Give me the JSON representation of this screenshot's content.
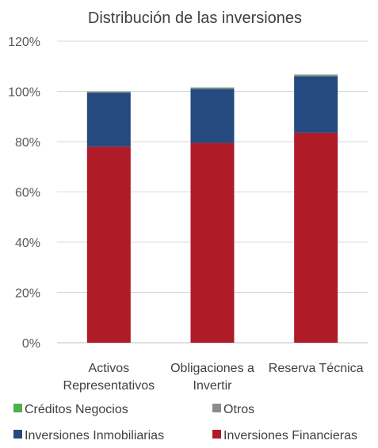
{
  "chart_data": {
    "type": "bar",
    "stacked": true,
    "title": "Distribución de las inversiones",
    "categories": [
      [
        "Activos",
        "Representativos"
      ],
      [
        "Obligaciones a",
        "Invertir"
      ],
      [
        "Reserva Técnica"
      ]
    ],
    "series": [
      {
        "name": "Inversiones Financieras",
        "color": "#B01B28",
        "values": [
          78,
          79.5,
          83.5
        ]
      },
      {
        "name": "Inversiones Inmobiliarias",
        "color": "#244A7F",
        "values": [
          21.5,
          21.5,
          22.5
        ]
      },
      {
        "name": "Otros",
        "color": "#8C8C8C",
        "values": [
          0.4,
          0.5,
          0.6
        ]
      },
      {
        "name": "Créditos Negocios",
        "color": "#4DB04A",
        "values": [
          0.1,
          0.1,
          0.1
        ]
      }
    ],
    "ylim": [
      0,
      120
    ],
    "yticks": [
      "0%",
      "20%",
      "40%",
      "60%",
      "80%",
      "100%",
      "120%"
    ],
    "grid": true,
    "legend": {
      "position": "bottom",
      "rows": [
        [
          "Créditos Negocios",
          "Otros"
        ],
        [
          "Inversiones Inmobiliarias",
          "Inversiones Financieras"
        ]
      ]
    }
  }
}
